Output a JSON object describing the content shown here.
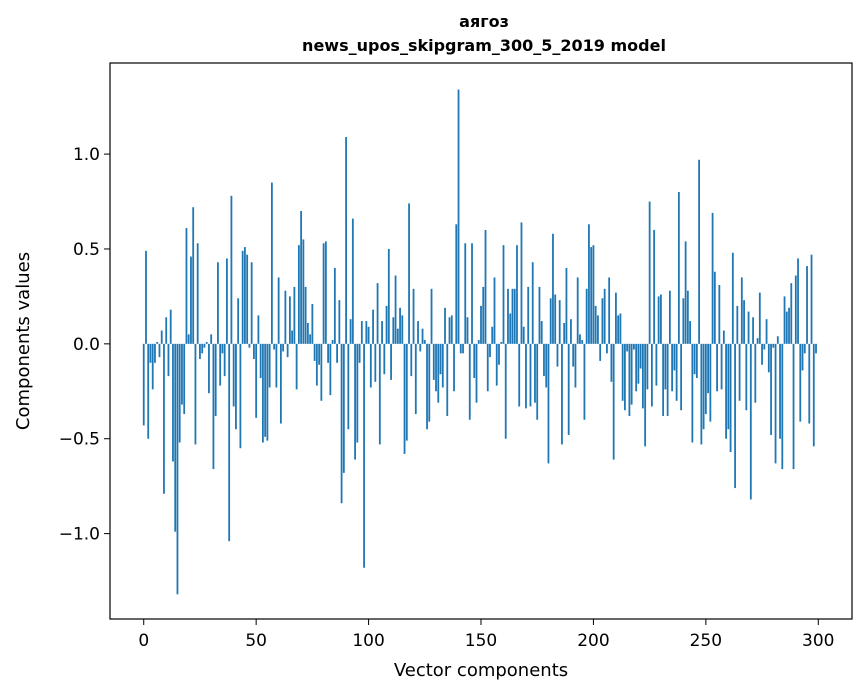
{
  "chart_data": {
    "type": "bar",
    "title": "аягоз",
    "subtitle": "news_upos_skipgram_300_5_2019 model",
    "xlabel": "Vector components",
    "ylabel": "Components values",
    "xlim": [
      -15,
      315
    ],
    "ylim": [
      -1.45,
      1.48
    ],
    "xticks": [
      0,
      50,
      100,
      150,
      200,
      250,
      300
    ],
    "xtick_labels": [
      "0",
      "50",
      "100",
      "150",
      "200",
      "250",
      "300"
    ],
    "yticks": [
      -1.0,
      -0.5,
      0.0,
      0.5,
      1.0
    ],
    "ytick_labels": [
      "−1.0",
      "−0.5",
      "0.0",
      "0.5",
      "1.0"
    ],
    "bar_color": "#1f77b4",
    "grid": false,
    "legend": "none",
    "x": "0..299",
    "values": [
      -0.43,
      0.49,
      -0.5,
      -0.1,
      -0.24,
      -0.1,
      0.01,
      -0.07,
      0.07,
      -0.79,
      0.14,
      -0.17,
      0.18,
      -0.62,
      -0.99,
      -1.32,
      -0.52,
      -0.32,
      -0.37,
      0.61,
      0.05,
      0.46,
      0.72,
      -0.53,
      0.53,
      -0.08,
      -0.05,
      -0.02,
      0.01,
      -0.26,
      0.05,
      -0.66,
      -0.38,
      0.43,
      -0.22,
      -0.05,
      -0.17,
      0.45,
      -1.04,
      0.78,
      -0.33,
      -0.45,
      0.24,
      -0.55,
      0.49,
      0.51,
      0.47,
      -0.02,
      0.43,
      -0.08,
      -0.39,
      0.15,
      -0.18,
      -0.52,
      -0.49,
      -0.51,
      -0.23,
      0.85,
      -0.03,
      -0.23,
      0.35,
      -0.42,
      -0.04,
      0.28,
      -0.07,
      0.25,
      0.07,
      0.3,
      -0.24,
      0.52,
      0.7,
      0.55,
      0.3,
      0.11,
      0.05,
      0.21,
      -0.09,
      -0.22,
      -0.11,
      -0.3,
      0.53,
      0.54,
      -0.1,
      -0.27,
      0.02,
      0.4,
      -0.1,
      0.23,
      -0.84,
      -0.68,
      1.09,
      -0.45,
      0.13,
      0.66,
      -0.61,
      -0.52,
      -0.1,
      0.12,
      -1.18,
      0.12,
      0.09,
      -0.23,
      0.18,
      -0.2,
      0.32,
      -0.53,
      0.12,
      -0.16,
      0.2,
      0.5,
      -0.19,
      0.14,
      0.36,
      0.08,
      0.19,
      0.15,
      -0.58,
      -0.51,
      0.74,
      -0.17,
      0.29,
      -0.37,
      0.12,
      -0.04,
      0.08,
      0.02,
      -0.45,
      -0.41,
      0.29,
      -0.19,
      -0.25,
      -0.31,
      -0.16,
      -0.23,
      0.19,
      -0.38,
      0.14,
      0.15,
      -0.25,
      0.63,
      1.34,
      -0.05,
      -0.05,
      0.53,
      0.14,
      -0.4,
      0.53,
      -0.18,
      -0.31,
      0.02,
      0.2,
      0.3,
      0.6,
      -0.25,
      -0.07,
      0.09,
      0.35,
      -0.22,
      -0.11,
      0.01,
      0.52,
      -0.5,
      0.29,
      0.16,
      0.29,
      0.29,
      0.52,
      -0.33,
      0.64,
      0.09,
      -0.34,
      0.3,
      -0.33,
      0.43,
      -0.31,
      -0.4,
      0.3,
      0.12,
      -0.17,
      -0.23,
      -0.63,
      0.24,
      0.58,
      0.26,
      -0.12,
      0.23,
      -0.53,
      0.11,
      0.4,
      -0.48,
      0.13,
      -0.12,
      -0.23,
      0.35,
      0.05,
      0.02,
      -0.4,
      0.29,
      0.63,
      0.51,
      0.52,
      0.2,
      0.15,
      -0.09,
      0.24,
      0.29,
      -0.05,
      0.35,
      -0.2,
      -0.61,
      0.27,
      0.15,
      0.16,
      -0.3,
      -0.35,
      -0.04,
      -0.38,
      -0.32,
      -0.03,
      -0.25,
      -0.21,
      -0.13,
      -0.34,
      -0.54,
      -0.24,
      0.75,
      -0.33,
      0.6,
      -0.22,
      0.25,
      0.26,
      -0.38,
      -0.24,
      -0.38,
      0.28,
      -0.25,
      -0.14,
      -0.3,
      0.8,
      -0.35,
      0.24,
      0.54,
      0.28,
      0.12,
      -0.52,
      -0.16,
      -0.18,
      0.97,
      -0.53,
      -0.45,
      -0.37,
      -0.26,
      -0.41,
      0.69,
      0.38,
      -0.25,
      0.31,
      -0.24,
      0.07,
      -0.5,
      -0.45,
      -0.57,
      0.48,
      -0.76,
      0.2,
      -0.3,
      0.35,
      0.23,
      -0.35,
      0.17,
      -0.82,
      0.14,
      -0.31,
      0.03,
      0.27,
      -0.11,
      -0.03,
      0.13,
      -0.15,
      -0.48,
      -0.02,
      -0.63,
      0.04,
      -0.5,
      -0.66,
      0.25,
      0.17,
      0.19,
      0.32,
      -0.66,
      0.36,
      0.45,
      -0.41,
      -0.14,
      -0.05,
      0.41,
      -0.42,
      0.47,
      -0.54,
      -0.05
    ]
  }
}
